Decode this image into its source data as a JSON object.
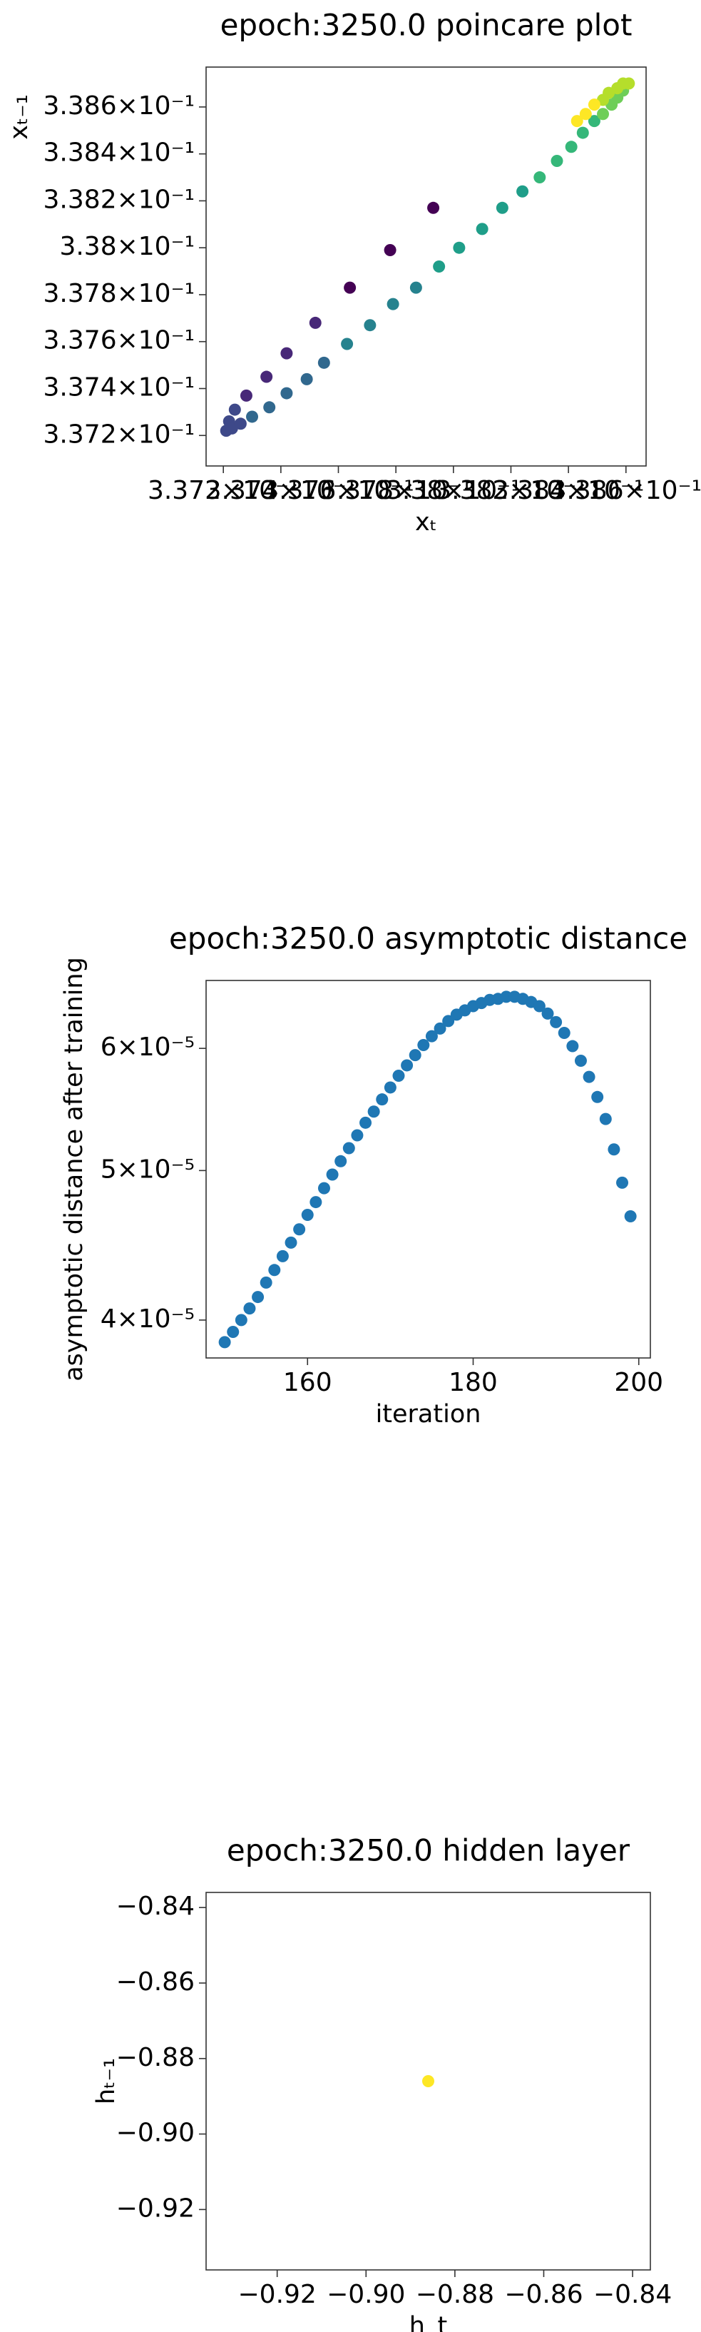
{
  "chart_data": [
    {
      "type": "scatter",
      "title": "epoch:3250.0 poincare plot",
      "xlabel": "xₜ",
      "ylabel": "xₜ₋₁",
      "colormap": "viridis",
      "x": [
        0.33793,
        0.33778,
        0.33764,
        0.33752,
        0.33742,
        0.33735,
        0.33728,
        0.33724,
        0.33722,
        0.33721,
        0.33723,
        0.33726,
        0.3373,
        0.33736,
        0.33742,
        0.33749,
        0.33755,
        0.33763,
        0.33771,
        0.33779,
        0.33787,
        0.33795,
        0.33802,
        0.3381,
        0.33817,
        0.33824,
        0.3383,
        0.33836,
        0.33841,
        0.33845,
        0.33849,
        0.33852,
        0.33855,
        0.33857,
        0.33859,
        0.33861,
        0.33859,
        0.33857,
        0.33854,
        0.33852,
        0.33849,
        0.33846,
        0.33843
      ],
      "values": [
        0.33817,
        0.33799,
        0.33783,
        0.33768,
        0.33755,
        0.33745,
        0.33737,
        0.33731,
        0.33726,
        0.33722,
        0.33723,
        0.33725,
        0.33728,
        0.33732,
        0.33738,
        0.33744,
        0.33751,
        0.33759,
        0.33767,
        0.33776,
        0.33783,
        0.33792,
        0.338,
        0.33808,
        0.33817,
        0.33824,
        0.3383,
        0.33837,
        0.33843,
        0.33849,
        0.33854,
        0.33857,
        0.33861,
        0.33864,
        0.33867,
        0.3387,
        0.3387,
        0.33868,
        0.33866,
        0.33863,
        0.33861,
        0.33857,
        0.33854
      ],
      "xlim": [
        0.33714,
        0.33867
      ],
      "ylim": [
        0.33707,
        0.33877
      ],
      "xticks": [
        {
          "value": 0.3372,
          "label": "3.372×10⁻¹"
        },
        {
          "value": 0.3374,
          "label": "3.374×10⁻¹"
        },
        {
          "value": 0.3376,
          "label": "3.376×10⁻¹"
        },
        {
          "value": 0.3378,
          "label": "3.378×10⁻¹"
        },
        {
          "value": 0.338,
          "label": "3.38×10⁻¹"
        },
        {
          "value": 0.3382,
          "label": "3.382×10⁻¹"
        },
        {
          "value": 0.3384,
          "label": "3.384×10⁻¹"
        },
        {
          "value": 0.3386,
          "label": "3.386×10⁻¹"
        }
      ],
      "yticks": [
        {
          "value": 0.3372,
          "label": "3.372×10⁻¹"
        },
        {
          "value": 0.3374,
          "label": "3.374×10⁻¹"
        },
        {
          "value": 0.3376,
          "label": "3.376×10⁻¹"
        },
        {
          "value": 0.3378,
          "label": "3.378×10⁻¹"
        },
        {
          "value": 0.338,
          "label": "3.38×10⁻¹"
        },
        {
          "value": 0.3382,
          "label": "3.382×10⁻¹"
        },
        {
          "value": 0.3384,
          "label": "3.384×10⁻¹"
        },
        {
          "value": 0.3386,
          "label": "3.386×10⁻¹"
        }
      ]
    },
    {
      "type": "scatter",
      "title": "epoch:3250.0 asymptotic distance",
      "xlabel": "iteration",
      "ylabel": "asymptotic distance after training",
      "color": "#1f77b4",
      "ylog": true,
      "x": [
        150,
        151,
        152,
        153,
        154,
        155,
        156,
        157,
        158,
        159,
        160,
        161,
        162,
        163,
        164,
        165,
        166,
        167,
        168,
        169,
        170,
        171,
        172,
        173,
        174,
        175,
        176,
        177,
        178,
        179,
        180,
        181,
        182,
        183,
        184,
        185,
        186,
        187,
        188,
        189,
        190,
        191,
        192,
        193,
        194,
        195,
        196,
        197,
        198,
        199
      ],
      "values": [
        3.87e-05,
        3.93e-05,
        4e-05,
        4.07e-05,
        4.14e-05,
        4.23e-05,
        4.31e-05,
        4.4e-05,
        4.49e-05,
        4.58e-05,
        4.68e-05,
        4.77e-05,
        4.87e-05,
        4.97e-05,
        5.07e-05,
        5.17e-05,
        5.27e-05,
        5.37e-05,
        5.46e-05,
        5.56e-05,
        5.66e-05,
        5.76e-05,
        5.85e-05,
        5.94e-05,
        6.03e-05,
        6.11e-05,
        6.18e-05,
        6.25e-05,
        6.31e-05,
        6.35e-05,
        6.39e-05,
        6.42e-05,
        6.45e-05,
        6.46e-05,
        6.48e-05,
        6.48e-05,
        6.46e-05,
        6.43e-05,
        6.39e-05,
        6.32e-05,
        6.24e-05,
        6.14e-05,
        6.02e-05,
        5.89e-05,
        5.75e-05,
        5.58e-05,
        5.4e-05,
        5.16e-05,
        4.91e-05,
        4.67e-05
      ],
      "xlim": [
        147.75,
        201.4
      ],
      "ylim": [
        3.78e-05,
        6.64e-05
      ],
      "xticks": [
        160,
        180,
        200
      ],
      "yticks": [
        {
          "value": 4e-05,
          "label": "4×10⁻⁵"
        },
        {
          "value": 5e-05,
          "label": "5×10⁻⁵"
        },
        {
          "value": 6e-05,
          "label": "6×10⁻⁵"
        }
      ]
    },
    {
      "type": "scatter",
      "title": "epoch:3250.0 hidden layer",
      "xlabel": "h_t",
      "ylabel": "hₜ₋₁",
      "color": "#fde725",
      "x": [
        -0.886
      ],
      "values": [
        -0.886
      ],
      "xlim": [
        -0.936,
        -0.836
      ],
      "ylim": [
        -0.936,
        -0.836
      ],
      "xticks": [
        {
          "value": -0.92,
          "label": "−0.92"
        },
        {
          "value": -0.9,
          "label": "−0.90"
        },
        {
          "value": -0.88,
          "label": "−0.88"
        },
        {
          "value": -0.86,
          "label": "−0.86"
        },
        {
          "value": -0.84,
          "label": "−0.84"
        }
      ],
      "yticks": [
        {
          "value": -0.92,
          "label": "−0.92"
        },
        {
          "value": -0.9,
          "label": "−0.90"
        },
        {
          "value": -0.88,
          "label": "−0.88"
        },
        {
          "value": -0.86,
          "label": "−0.86"
        },
        {
          "value": -0.84,
          "label": "−0.84"
        }
      ]
    }
  ]
}
